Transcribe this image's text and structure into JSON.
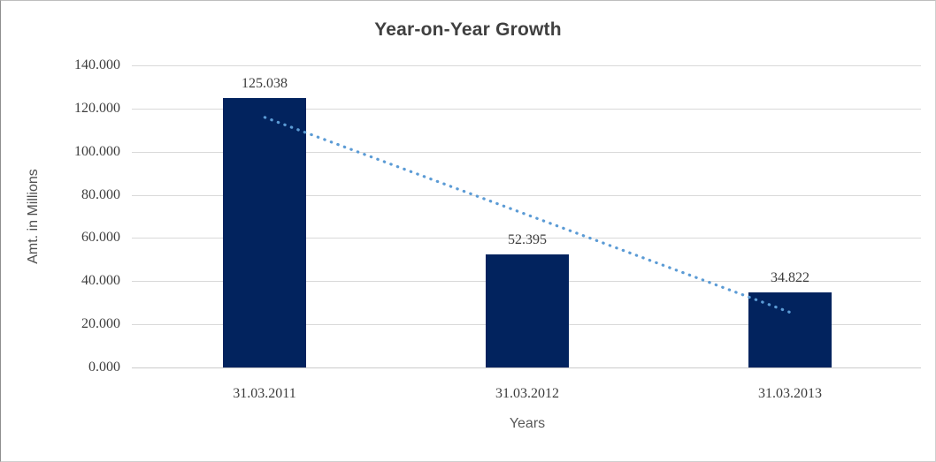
{
  "chart_data": {
    "type": "bar",
    "title": "Year-on-Year Growth",
    "xlabel": "Years",
    "ylabel": "Amt. in Millions",
    "categories": [
      "31.03.2011",
      "31.03.2012",
      "31.03.2013"
    ],
    "values": [
      125.038,
      52.395,
      34.822
    ],
    "value_labels": [
      "125.038",
      "52.395",
      "34.822"
    ],
    "ylim": [
      0,
      140
    ],
    "ytick_step": 20,
    "ytick_labels": [
      "0.000",
      "20.000",
      "40.000",
      "60.000",
      "80.000",
      "100.000",
      "120.000",
      "140.000"
    ],
    "grid": true,
    "legend": false,
    "bar_color": "#02235E",
    "gridline_color": "#d9d9d9",
    "trendline": {
      "type": "linear",
      "style": "dotted",
      "color": "#5B9BD5",
      "start_value": 115.9,
      "end_value": 25.6
    }
  }
}
